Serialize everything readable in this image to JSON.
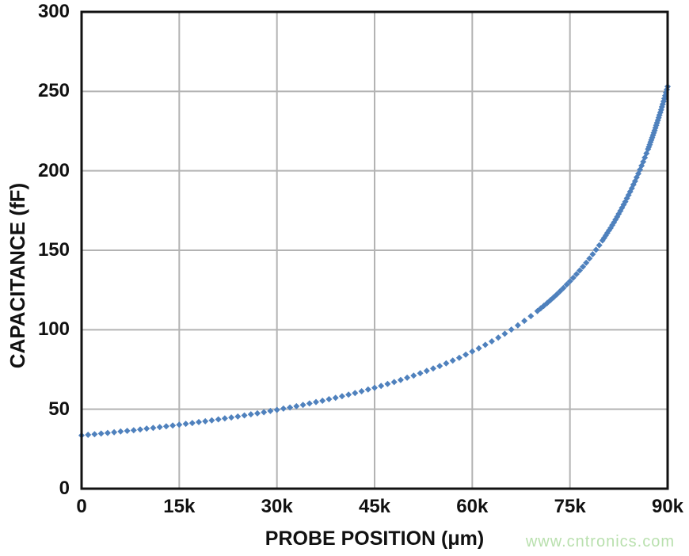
{
  "watermark": {
    "text": "www.cntronics.com",
    "color": "#b9e0ae"
  },
  "chart_data": {
    "type": "scatter",
    "title": "",
    "xlabel": "PROBE POSITION (μm)",
    "ylabel": "CAPACITANCE (fF)",
    "xlim": [
      0,
      90000
    ],
    "ylim": [
      0,
      300
    ],
    "grid": true,
    "legend": "none",
    "marker": {
      "shape": "diamond",
      "color": "#4F81BD",
      "size": 8
    },
    "axis_color": "#111111",
    "grid_color": "#b3b3b3",
    "x_ticks": {
      "values": [
        0,
        15000,
        30000,
        45000,
        60000,
        75000,
        90000
      ],
      "labels": [
        "0",
        "15k",
        "30k",
        "45k",
        "60k",
        "75k",
        "90k"
      ]
    },
    "y_ticks": {
      "values": [
        0,
        50,
        100,
        150,
        200,
        250,
        300
      ],
      "labels": [
        "0",
        "50",
        "100",
        "150",
        "200",
        "250",
        "300"
      ]
    },
    "points": [
      [
        0,
        33.5
      ],
      [
        1000,
        33.9
      ],
      [
        2000,
        34.3
      ],
      [
        3000,
        34.7
      ],
      [
        4000,
        35.1
      ],
      [
        5000,
        35.5
      ],
      [
        6000,
        36.0
      ],
      [
        7000,
        36.4
      ],
      [
        8000,
        36.8
      ],
      [
        9000,
        37.3
      ],
      [
        10000,
        37.8
      ],
      [
        11000,
        38.2
      ],
      [
        12000,
        38.7
      ],
      [
        13000,
        39.2
      ],
      [
        14000,
        39.7
      ],
      [
        15000,
        40.2
      ],
      [
        16000,
        40.8
      ],
      [
        17000,
        41.3
      ],
      [
        18000,
        41.9
      ],
      [
        19000,
        42.4
      ],
      [
        20000,
        43.0
      ],
      [
        21000,
        43.6
      ],
      [
        22000,
        44.2
      ],
      [
        23000,
        44.8
      ],
      [
        24000,
        45.4
      ],
      [
        25000,
        46.1
      ],
      [
        26000,
        46.8
      ],
      [
        27000,
        47.4
      ],
      [
        28000,
        48.1
      ],
      [
        29000,
        48.9
      ],
      [
        30000,
        49.6
      ],
      [
        31000,
        50.4
      ],
      [
        32000,
        51.1
      ],
      [
        33000,
        51.9
      ],
      [
        34000,
        52.7
      ],
      [
        35000,
        53.6
      ],
      [
        36000,
        54.5
      ],
      [
        37000,
        55.3
      ],
      [
        38000,
        56.3
      ],
      [
        39000,
        57.2
      ],
      [
        40000,
        58.2
      ],
      [
        41000,
        59.2
      ],
      [
        42000,
        60.2
      ],
      [
        43000,
        61.3
      ],
      [
        44000,
        62.4
      ],
      [
        45000,
        63.5
      ],
      [
        46000,
        64.7
      ],
      [
        47000,
        65.9
      ],
      [
        48000,
        67.1
      ],
      [
        49000,
        68.4
      ],
      [
        50000,
        69.8
      ],
      [
        51000,
        71.1
      ],
      [
        52000,
        72.6
      ],
      [
        53000,
        74.1
      ],
      [
        54000,
        75.6
      ],
      [
        55000,
        77.2
      ],
      [
        56000,
        78.9
      ],
      [
        57000,
        80.6
      ],
      [
        58000,
        82.4
      ],
      [
        59000,
        84.3
      ],
      [
        60000,
        86.3
      ],
      [
        61000,
        88.3
      ],
      [
        62000,
        90.5
      ],
      [
        63000,
        92.7
      ],
      [
        64000,
        95.1
      ],
      [
        65000,
        97.5
      ],
      [
        66000,
        100.1
      ],
      [
        67000,
        102.8
      ],
      [
        68000,
        105.6
      ],
      [
        69000,
        108.6
      ],
      [
        70000,
        111.8
      ],
      [
        70500,
        113.4
      ],
      [
        71000,
        115.1
      ],
      [
        71500,
        116.8
      ],
      [
        72000,
        118.6
      ],
      [
        72500,
        120.4
      ],
      [
        73000,
        122.3
      ],
      [
        73500,
        124.3
      ],
      [
        74000,
        126.3
      ],
      [
        74500,
        128.4
      ],
      [
        75000,
        130.5
      ],
      [
        75500,
        132.7
      ],
      [
        76000,
        135.0
      ],
      [
        76500,
        137.3
      ],
      [
        77000,
        139.7
      ],
      [
        77500,
        142.2
      ],
      [
        78000,
        144.8
      ],
      [
        78500,
        147.5
      ],
      [
        79000,
        150.3
      ],
      [
        79500,
        153.2
      ],
      [
        80000,
        156.2
      ],
      [
        80250,
        157.7
      ],
      [
        80500,
        159.3
      ],
      [
        80750,
        160.9
      ],
      [
        81000,
        162.5
      ],
      [
        81250,
        164.1
      ],
      [
        81500,
        165.8
      ],
      [
        81750,
        167.5
      ],
      [
        82000,
        169.3
      ],
      [
        82250,
        171.1
      ],
      [
        82500,
        172.9
      ],
      [
        82750,
        174.8
      ],
      [
        83000,
        176.7
      ],
      [
        83250,
        178.7
      ],
      [
        83500,
        180.6
      ],
      [
        83750,
        182.7
      ],
      [
        84000,
        184.8
      ],
      [
        84250,
        186.9
      ],
      [
        84500,
        189.0
      ],
      [
        84750,
        191.3
      ],
      [
        85000,
        193.5
      ],
      [
        85250,
        195.9
      ],
      [
        85500,
        198.2
      ],
      [
        85750,
        200.7
      ],
      [
        86000,
        203.2
      ],
      [
        86250,
        205.7
      ],
      [
        86500,
        208.3
      ],
      [
        86750,
        211.0
      ],
      [
        87000,
        213.7
      ],
      [
        87125,
        215.1
      ],
      [
        87250,
        216.5
      ],
      [
        87375,
        218.0
      ],
      [
        87500,
        219.4
      ],
      [
        87625,
        220.9
      ],
      [
        87750,
        222.4
      ],
      [
        87875,
        223.9
      ],
      [
        88000,
        225.4
      ],
      [
        88125,
        227.0
      ],
      [
        88250,
        228.6
      ],
      [
        88375,
        230.2
      ],
      [
        88500,
        231.8
      ],
      [
        88625,
        233.4
      ],
      [
        88750,
        235.1
      ],
      [
        88875,
        236.7
      ],
      [
        89000,
        238.4
      ],
      [
        89125,
        240.2
      ],
      [
        89250,
        241.9
      ],
      [
        89375,
        243.7
      ],
      [
        89500,
        245.5
      ],
      [
        89625,
        247.3
      ],
      [
        89750,
        249.2
      ],
      [
        89875,
        251.1
      ],
      [
        90000,
        253.0
      ]
    ]
  }
}
